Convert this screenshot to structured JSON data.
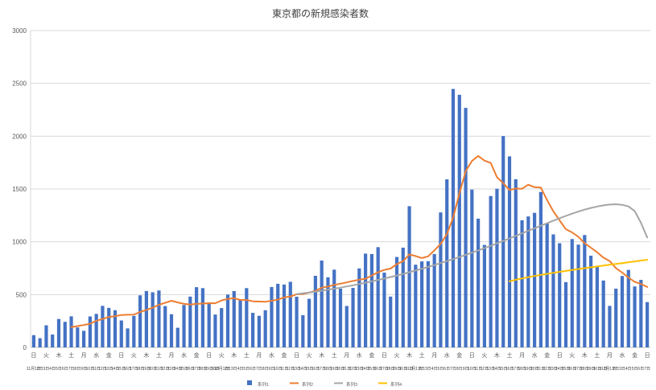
{
  "chart_data": {
    "type": "bar",
    "title": "東京都の新規感染者数",
    "xlabel": "",
    "ylabel": "",
    "ylim": [
      0,
      3000
    ],
    "yticks": [
      0,
      500,
      1000,
      1500,
      2000,
      2500,
      3000
    ],
    "grid": true,
    "legend_position": "bottom",
    "months": [
      {
        "name": "11月",
        "days": 30
      },
      {
        "name": "12月",
        "days": 31
      },
      {
        "name": "1月",
        "days": 31
      },
      {
        "name": "2月",
        "days": 7
      }
    ],
    "dow_cycle": [
      "日",
      "火",
      "木",
      "土",
      "月",
      "水",
      "金"
    ],
    "dow_label_every": 2,
    "date_suffix": "日",
    "colors": {
      "grid": "#D9D9D9",
      "axis": "#BFBFBF",
      "tick_text": "#595959",
      "date_text": "#404040"
    },
    "series": [
      {
        "name": "系列1",
        "type": "bar",
        "color": "#4472C4",
        "start_day": 1,
        "values": [
          116,
          87,
          209,
          122,
          269,
          242,
          294,
          189,
          157,
          293,
          317,
          393,
          374,
          352,
          255,
          180,
          298,
          493,
          534,
          522,
          539,
          391,
          314,
          186,
          401,
          481,
          570,
          561,
          418,
          311,
          372,
          500,
          533,
          449,
          561,
          327,
          299,
          352,
          572,
          602,
          595,
          621,
          480,
          305,
          460,
          678,
          822,
          664,
          736,
          556,
          392,
          563,
          748,
          888,
          884,
          949,
          708,
          481,
          856,
          944,
          1337,
          783,
          814,
          816,
          884,
          1278,
          1591,
          2447,
          2392,
          2268,
          1494,
          1219,
          970,
          1433,
          1502,
          2001,
          1809,
          1592,
          1204,
          1240,
          1274,
          1471,
          1175,
          1070,
          986,
          618,
          1026,
          973,
          1064,
          868,
          769,
          633,
          393,
          556,
          676,
          734,
          577,
          639,
          429
        ]
      },
      {
        "name": "系列2",
        "type": "line",
        "color": "#ED7D31",
        "start_day": 7,
        "values": [
          191,
          202,
          212,
          224,
          252,
          269,
          288,
          296,
          306,
          309,
          310,
          335,
          355,
          376,
          403,
          422,
          442,
          426,
          412,
          405,
          412,
          415,
          419,
          418,
          445,
          459,
          466,
          449,
          449,
          436,
          434,
          432,
          442,
          452,
          473,
          481,
          503,
          504,
          519,
          534,
          566,
          576,
          592,
          603,
          615,
          630,
          640,
          650,
          681,
          711,
          733,
          746,
          788,
          816,
          880,
          865,
          846,
          862,
          919,
          979,
          1072,
          1230,
          1460,
          1668,
          1765,
          1813,
          1769,
          1746,
          1611,
          1555,
          1490,
          1504,
          1502,
          1540,
          1517,
          1513,
          1395,
          1289,
          1203,
          1119,
          1089,
          1046,
          987,
          944,
          901,
          850,
          818,
          751,
          708,
          661,
          620,
          601,
          572
        ]
      },
      {
        "name": "系列3",
        "type": "line",
        "color": "#A5A5A5",
        "start_day": 43,
        "values": [
          505,
          512,
          520,
          528,
          537,
          546,
          556,
          566,
          577,
          588,
          600,
          612,
          625,
          638,
          652,
          666,
          681,
          696,
          712,
          728,
          745,
          762,
          780,
          798,
          817,
          836,
          856,
          876,
          897,
          918,
          940,
          962,
          985,
          1008,
          1032,
          1056,
          1080,
          1104,
          1128,
          1152,
          1176,
          1200,
          1223,
          1245,
          1266,
          1286,
          1304,
          1320,
          1334,
          1345,
          1352,
          1355,
          1350,
          1335,
          1290,
          1180,
          1040
        ]
      },
      {
        "name": "系列4",
        "type": "line",
        "color": "#FFC000",
        "start_day": 77,
        "values": [
          625,
          640,
          653,
          665,
          676,
          686,
          696,
          706,
          715,
          724,
          733,
          742,
          750,
          758,
          766,
          774,
          782,
          790,
          798,
          806,
          814,
          822,
          830
        ]
      }
    ]
  }
}
